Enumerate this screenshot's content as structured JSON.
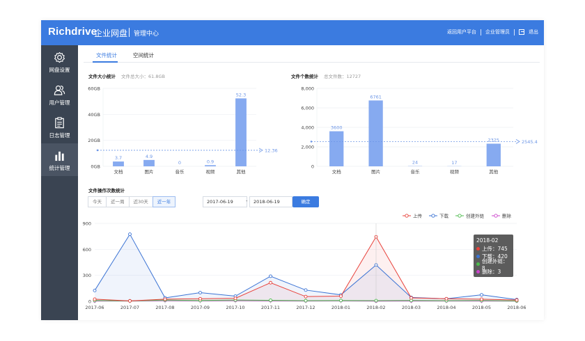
{
  "topbar": {
    "logo": "Richdrive",
    "brand": "企业网盘",
    "section": "管理中心",
    "links": [
      "返回用户平台",
      "企业管理员"
    ],
    "logout": "退出"
  },
  "sidebar": {
    "items": [
      {
        "label": "网盘设置",
        "icon": "gear-icon"
      },
      {
        "label": "用户管理",
        "icon": "users-icon"
      },
      {
        "label": "日志管理",
        "icon": "clipboard-icon"
      },
      {
        "label": "统计管理",
        "icon": "bar-chart-icon",
        "active": true
      }
    ]
  },
  "tabs": [
    {
      "label": "文件统计",
      "active": true
    },
    {
      "label": "空间统计",
      "active": false
    }
  ],
  "size_section": {
    "title": "文件大小统计",
    "subtitle": "文件总大小：61.8GB"
  },
  "count_section": {
    "title": "文件个数统计",
    "subtitle": "总文件数：12727"
  },
  "ops_section": {
    "title": "文件操作次数统计"
  },
  "filters": [
    "今天",
    "近一周",
    "近30天",
    "近一年"
  ],
  "active_filter": "近一年",
  "date_from": "2017-06-19",
  "date_to": "2018-06-19",
  "date_sep": "-",
  "confirm_label": "确定",
  "tooltip": {
    "title": "2018-02",
    "rows": [
      {
        "label": "上传：745",
        "color": "#e8413a"
      },
      {
        "label": "下载：420",
        "color": "#3b73d4"
      },
      {
        "label": "创建外链：8",
        "color": "#4cbb4c"
      },
      {
        "label": "删除：3",
        "color": "#cc44cc"
      }
    ]
  },
  "chart_data": [
    {
      "type": "bar",
      "categories": [
        "文档",
        "图片",
        "音乐",
        "视频",
        "其他"
      ],
      "values": [
        3.7,
        4.9,
        0,
        0.9,
        52.3
      ],
      "value_labels": [
        "3.7",
        "4.9",
        "0",
        "0.9",
        "52.3"
      ],
      "y_ticks": [
        "0GB",
        "20GB",
        "40GB",
        "60GB"
      ],
      "ylim": [
        0,
        60
      ],
      "average": 12.36,
      "average_label": "12.36",
      "color": "#86aaf0"
    },
    {
      "type": "bar",
      "categories": [
        "文档",
        "图片",
        "音乐",
        "视频",
        "其他"
      ],
      "values": [
        3600,
        6761,
        24,
        17,
        2325
      ],
      "value_labels": [
        "3600",
        "6761",
        "24",
        "17",
        "2325"
      ],
      "y_ticks": [
        "0",
        "2,000",
        "4,000",
        "6,000",
        "8,000"
      ],
      "ylim": [
        0,
        8000
      ],
      "average": 2545.4,
      "average_label": "2545.4",
      "color": "#86aaf0"
    },
    {
      "type": "line",
      "x": [
        "2017-06",
        "2017-07",
        "2017-08",
        "2017-09",
        "2017-10",
        "2017-11",
        "2017-12",
        "2018-01",
        "2018-02",
        "2018-03",
        "2018-04",
        "2018-05",
        "2018-06"
      ],
      "y_ticks": [
        "0",
        "300",
        "600",
        "900"
      ],
      "ylim": [
        0,
        900
      ],
      "legend_position": "top-right",
      "series": [
        {
          "name": "上传",
          "color": "#e8413a",
          "values": [
            25,
            5,
            25,
            30,
            35,
            215,
            55,
            60,
            745,
            40,
            30,
            25,
            15
          ]
        },
        {
          "name": "下载",
          "color": "#3b73d4",
          "values": [
            125,
            775,
            40,
            100,
            60,
            290,
            130,
            75,
            420,
            45,
            30,
            75,
            20
          ]
        },
        {
          "name": "创建外链",
          "color": "#4cbb4c",
          "values": [
            10,
            5,
            15,
            10,
            15,
            12,
            8,
            10,
            8,
            10,
            8,
            10,
            5
          ]
        },
        {
          "name": "删除",
          "color": "#cc44cc",
          "values": [
            5,
            5,
            10,
            8,
            10,
            8,
            5,
            8,
            3,
            5,
            5,
            5,
            3
          ]
        }
      ]
    }
  ]
}
